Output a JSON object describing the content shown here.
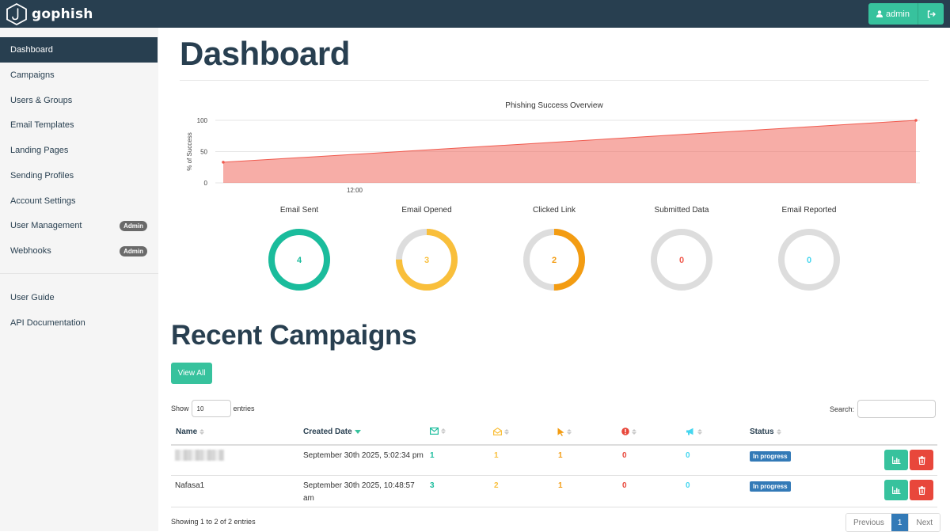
{
  "brand": {
    "name": "gophish"
  },
  "user_menu": {
    "username": "admin",
    "user_icon": "user-icon",
    "logout_icon": "logout-icon"
  },
  "sidebar": {
    "items": [
      {
        "label": "Dashboard",
        "active": true
      },
      {
        "label": "Campaigns"
      },
      {
        "label": "Users & Groups"
      },
      {
        "label": "Email Templates"
      },
      {
        "label": "Landing Pages"
      },
      {
        "label": "Sending Profiles"
      },
      {
        "label": "Account Settings"
      },
      {
        "label": "User Management",
        "badge": "Admin"
      },
      {
        "label": "Webhooks",
        "badge": "Admin"
      }
    ],
    "footer_items": [
      {
        "label": "User Guide"
      },
      {
        "label": "API Documentation"
      }
    ]
  },
  "page": {
    "title": "Dashboard"
  },
  "chart_data": {
    "type": "area",
    "title": "Phishing Success Overview",
    "ylabel": "% of Success",
    "xlabel": "",
    "x_tick_labels": [
      "12:00"
    ],
    "y_ticks": [
      0,
      50,
      100
    ],
    "ylim": [
      0,
      100
    ],
    "grid": true,
    "series": [
      {
        "values": [
          33,
          100
        ],
        "color": "#f05b4f"
      }
    ]
  },
  "stats": [
    {
      "label": "Email Sent",
      "value": "4",
      "color": "#1abc9c",
      "fraction": 1.0
    },
    {
      "label": "Email Opened",
      "value": "3",
      "color": "#f9bf3b",
      "fraction": 0.75
    },
    {
      "label": "Clicked Link",
      "value": "2",
      "color": "#f39c12",
      "fraction": 0.5
    },
    {
      "label": "Submitted Data",
      "value": "0",
      "color": "#f05b4f",
      "fraction": 0
    },
    {
      "label": "Email Reported",
      "value": "0",
      "color": "#45d6ef",
      "fraction": 0
    }
  ],
  "campaigns": {
    "title": "Recent Campaigns",
    "view_all": "View All",
    "show_label": "Show",
    "entries_value": "10",
    "entries_label": "entries",
    "search_label": "Search:",
    "columns": {
      "name": "Name",
      "created": "Created Date",
      "status": "Status"
    },
    "rows": [
      {
        "name": "",
        "created_line1": "September 30th 2025, 5:02:34 pm",
        "created_line2": "",
        "sent": "1",
        "opened": "1",
        "clicked": "1",
        "submitted": "0",
        "reported": "0",
        "status": "In progress"
      },
      {
        "name": "Nafasa1",
        "created_line1": "September 30th 2025, 10:48:57",
        "created_line2": "am",
        "sent": "3",
        "opened": "2",
        "clicked": "1",
        "submitted": "0",
        "reported": "0",
        "status": "In progress"
      }
    ],
    "footer": "Showing 1 to 2 of 2 entries",
    "pagination": {
      "previous": "Previous",
      "current": "1",
      "next": "Next"
    }
  },
  "colors": {
    "navbar": "#283f50",
    "accent": "#37c29d",
    "danger": "#e8473b",
    "info": "#337ab7"
  }
}
